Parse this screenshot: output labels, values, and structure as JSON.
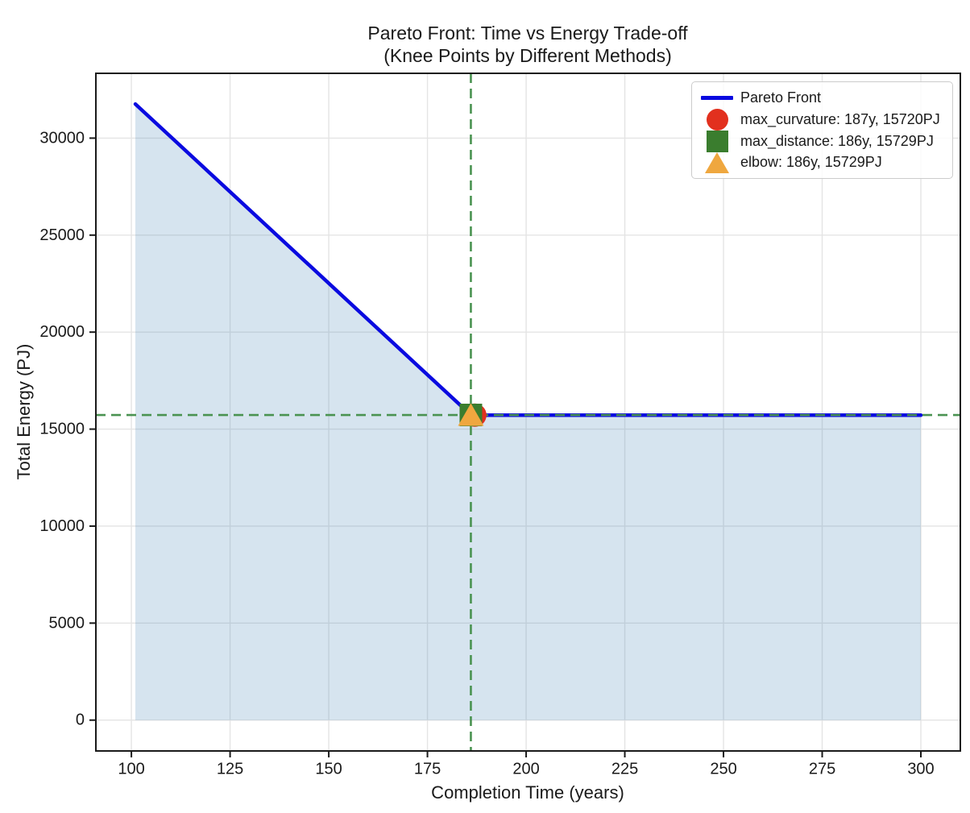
{
  "figure": {
    "title_line1": "Pareto Front: Time vs Energy Trade-off",
    "title_line2": "(Knee Points by Different Methods)"
  },
  "chart_data": {
    "type": "line",
    "title": "Pareto Front: Time vs Energy Trade-off (Knee Points by Different Methods)",
    "xlabel": "Completion Time (years)",
    "ylabel": "Total Energy (PJ)",
    "xlim": [
      91,
      310
    ],
    "ylim": [
      -1590,
      33340
    ],
    "x_ticks": [
      100,
      125,
      150,
      175,
      200,
      225,
      250,
      275,
      300
    ],
    "y_ticks": [
      0,
      5000,
      10000,
      15000,
      20000,
      25000,
      30000
    ],
    "grid": true,
    "legend_position": "upper right",
    "series": [
      {
        "name": "Pareto Front",
        "color": "#0a0ae0",
        "line_width": 4.5,
        "points": [
          [
            101,
            31757
          ],
          [
            186,
            15729
          ],
          [
            187,
            15720
          ],
          [
            300,
            15720
          ]
        ],
        "fill_to_zero": true,
        "fill_color": "#4682b4",
        "fill_opacity": 0.22
      }
    ],
    "knee_points": [
      {
        "method": "max_curvature",
        "x": 187,
        "y": 15720,
        "marker": "circle",
        "color": "#e2301e",
        "label": "max_curvature: 187y, 15720PJ"
      },
      {
        "method": "max_distance",
        "x": 186,
        "y": 15729,
        "marker": "square",
        "color": "#3a7d2e",
        "label": "max_distance: 186y, 15729PJ"
      },
      {
        "method": "elbow",
        "x": 186,
        "y": 15729,
        "marker": "triangle",
        "color": "#efa73f",
        "label": "elbow: 186y, 15729PJ"
      }
    ],
    "reference_lines": {
      "vertical_x": 186,
      "horizontal_y": 15729,
      "color": "#4a9351",
      "style": "dashed"
    },
    "colors": {
      "grid": "#e4e4e4",
      "axes": "#1a1a1a",
      "background": "#ffffff"
    }
  },
  "legend": {
    "items": [
      {
        "label": "Pareto Front",
        "marker": "line",
        "color": "#0a0ae0"
      },
      {
        "label": "max_curvature: 187y, 15720PJ",
        "marker": "circle",
        "color": "#e2301e"
      },
      {
        "label": "max_distance: 186y, 15729PJ",
        "marker": "square",
        "color": "#3a7d2e"
      },
      {
        "label": "elbow: 186y, 15729PJ",
        "marker": "triangle",
        "color": "#efa73f"
      }
    ]
  }
}
